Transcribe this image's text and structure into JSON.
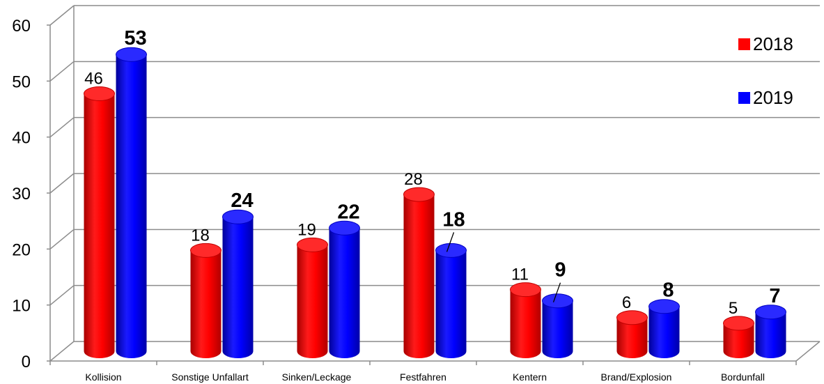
{
  "chart_data": {
    "type": "bar",
    "categories": [
      "Kollision",
      "Sonstige Unfallart",
      "Sinken/Leckage",
      "Festfahren",
      "Kentern",
      "Brand/Explosion",
      "Bordunfall"
    ],
    "series": [
      {
        "name": "2018",
        "values": [
          46,
          18,
          19,
          28,
          11,
          6,
          5
        ],
        "color": "#ff0000",
        "label_style": "normal"
      },
      {
        "name": "2019",
        "values": [
          53,
          24,
          22,
          18,
          9,
          8,
          7
        ],
        "color": "#0000ff",
        "label_style": "bold"
      }
    ],
    "ylim": [
      0,
      60
    ],
    "yticks": [
      "0",
      "10",
      "20",
      "30",
      "40",
      "50",
      "60"
    ],
    "grid": true,
    "legend_position": "top-right",
    "style": "3d-cylinder"
  }
}
